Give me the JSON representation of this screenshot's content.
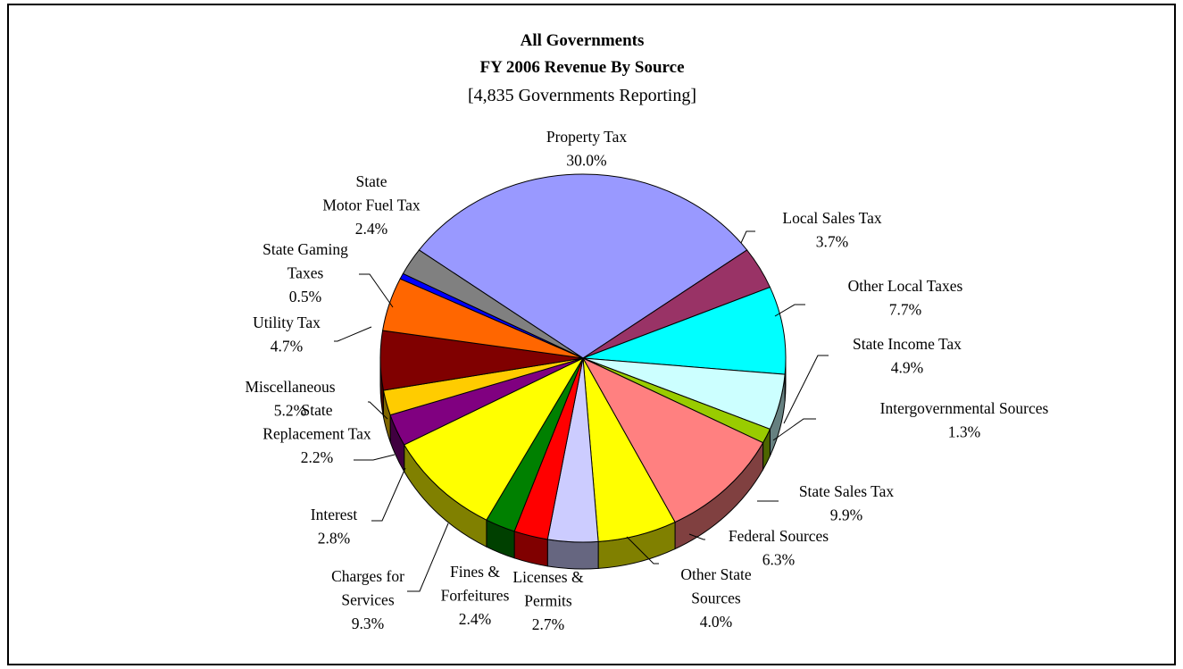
{
  "chart_data": {
    "type": "pie",
    "title_lines": [
      "All Governments",
      "FY 2006 Revenue By Source"
    ],
    "subtitle": "[4,835 Governments Reporting]",
    "slices": [
      {
        "label": [
          "Property Tax"
        ],
        "value": 30.0,
        "pct": "30.0%",
        "color": "#9999FF"
      },
      {
        "label": [
          "Local Sales Tax"
        ],
        "value": 3.7,
        "pct": "3.7%",
        "color": "#993366"
      },
      {
        "label": [
          "Other Local Taxes"
        ],
        "value": 7.7,
        "pct": "7.7%",
        "color": "#00FFFF"
      },
      {
        "label": [
          "State Income Tax"
        ],
        "value": 4.9,
        "pct": "4.9%",
        "color": "#CCFFFF"
      },
      {
        "label": [
          "Intergovernmental Sources"
        ],
        "value": 1.3,
        "pct": "1.3%",
        "color": "#99CC00"
      },
      {
        "label": [
          "State Sales Tax"
        ],
        "value": 9.9,
        "pct": "9.9%",
        "color": "#FF8080"
      },
      {
        "label": [
          "Federal Sources"
        ],
        "value": 6.3,
        "pct": "6.3%",
        "color": "#FFFF00"
      },
      {
        "label": [
          "Other State",
          "Sources"
        ],
        "value": 4.0,
        "pct": "4.0%",
        "color": "#CCCCFF"
      },
      {
        "label": [
          "Licenses &",
          "Permits"
        ],
        "value": 2.7,
        "pct": "2.7%",
        "color": "#FF0000"
      },
      {
        "label": [
          "Fines &",
          "Forfeitures"
        ],
        "value": 2.4,
        "pct": "2.4%",
        "color": "#008000"
      },
      {
        "label": [
          "Charges for",
          "Services"
        ],
        "value": 9.3,
        "pct": "9.3%",
        "color": "#FFFF00"
      },
      {
        "label": [
          "Interest"
        ],
        "value": 2.8,
        "pct": "2.8%",
        "color": "#800080"
      },
      {
        "label": [
          "State",
          "Replacement Tax"
        ],
        "value": 2.2,
        "pct": "2.2%",
        "color": "#FFCC00"
      },
      {
        "label": [
          "Miscellaneous"
        ],
        "value": 5.2,
        "pct": "5.2%",
        "color": "#800000"
      },
      {
        "label": [
          "Utility Tax"
        ],
        "value": 4.7,
        "pct": "4.7%",
        "color": "#FF6600"
      },
      {
        "label": [
          "State Gaming",
          "Taxes"
        ],
        "value": 0.5,
        "pct": "0.5%",
        "color": "#0000FF"
      },
      {
        "label": [
          "State",
          "Motor Fuel Tax"
        ],
        "value": 2.4,
        "pct": "2.4%",
        "color": "#808080"
      }
    ],
    "legend": "none",
    "style": "3d-pie"
  }
}
